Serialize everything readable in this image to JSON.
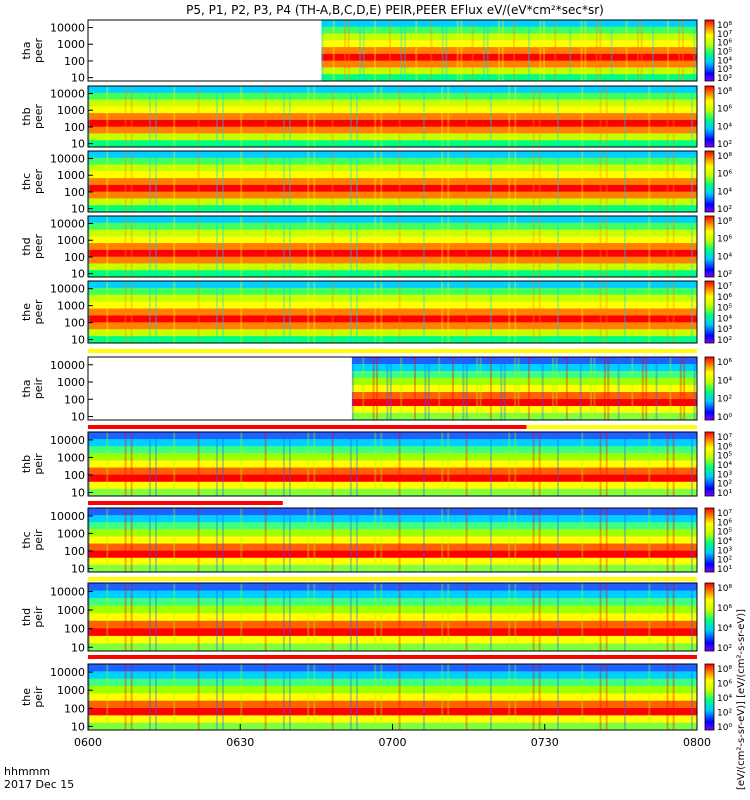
{
  "title": "P5, P1, P2, P3, P4 (TH-A,B,C,D,E) PEIR,PEER EFlux eV/(eV*cm²*sec*sr)",
  "footer": {
    "time_unit": "hhmmm",
    "date": "2017 Dec 15"
  },
  "colorbar_unit_label": "[eV/(cm²-s-sr-eV)] [eV/(cm²-s-sr-eV)]",
  "chart_data": {
    "type": "heatmap",
    "x_axis": {
      "ticks": [
        "0600",
        "0630",
        "0700",
        "0730",
        "0800"
      ],
      "range": [
        "0600",
        "0800"
      ]
    },
    "y_axis": {
      "scale": "log",
      "ticks": [
        "10",
        "100",
        "1000",
        "10000"
      ]
    },
    "panels": [
      {
        "id": "tha-peer",
        "label": [
          "tha",
          "peer"
        ],
        "data_start": "0646",
        "bar": null,
        "colorbar_ticks": [
          "10⁸",
          "10⁷",
          "10⁶",
          "10⁵",
          "10⁴",
          "10³",
          "10²"
        ]
      },
      {
        "id": "thb-peer",
        "label": [
          "thb",
          "peer"
        ],
        "data_start": "0600",
        "bar": null,
        "colorbar_ticks": [
          "10⁸",
          "10⁶",
          "10⁴",
          "10²"
        ]
      },
      {
        "id": "thc-peer",
        "label": [
          "thc",
          "peer"
        ],
        "data_start": "0600",
        "bar": null,
        "colorbar_ticks": [
          "10⁸",
          "10⁶",
          "10⁴",
          "10²"
        ]
      },
      {
        "id": "thd-peer",
        "label": [
          "thd",
          "peer"
        ],
        "data_start": "0600",
        "bar": null,
        "colorbar_ticks": [
          "10⁸",
          "10⁶",
          "10⁴",
          "10²"
        ]
      },
      {
        "id": "the-peer",
        "label": [
          "the",
          "peer"
        ],
        "data_start": "0600",
        "bar": null,
        "colorbar_ticks": [
          "10⁷",
          "10⁶",
          "10⁵",
          "10⁴",
          "10³",
          "10²"
        ]
      },
      {
        "id": "tha-peir",
        "label": [
          "tha",
          "peir"
        ],
        "data_start": "0652",
        "bar": "yellow",
        "colorbar_ticks": [
          "10⁶",
          "10⁴",
          "10²",
          "10⁰"
        ]
      },
      {
        "id": "thb-peir",
        "label": [
          "thb",
          "peir"
        ],
        "data_start": "0600",
        "bar": "red-yellow",
        "colorbar_ticks": [
          "10⁷",
          "10⁶",
          "10⁵",
          "10⁴",
          "10³",
          "10²",
          "10¹"
        ]
      },
      {
        "id": "thc-peir",
        "label": [
          "thc",
          "peir"
        ],
        "data_start": "0600",
        "bar": "red-white",
        "colorbar_ticks": [
          "10⁷",
          "10⁶",
          "10⁵",
          "10⁴",
          "10³",
          "10²",
          "10¹"
        ]
      },
      {
        "id": "thd-peir",
        "label": [
          "thd",
          "peir"
        ],
        "data_start": "0600",
        "bar": "yellow",
        "colorbar_ticks": [
          "10⁸",
          "10⁶",
          "10⁴",
          "10²"
        ]
      },
      {
        "id": "the-peir",
        "label": [
          "the",
          "peir"
        ],
        "data_start": "0600",
        "bar": "red",
        "colorbar_ticks": [
          "10⁸",
          "10⁶",
          "10⁴",
          "10²",
          "10⁰"
        ]
      }
    ],
    "colors": {
      "bar_red": "#ff0000",
      "bar_yellow": "#ffff00",
      "missing_data": "#ffffff"
    }
  }
}
